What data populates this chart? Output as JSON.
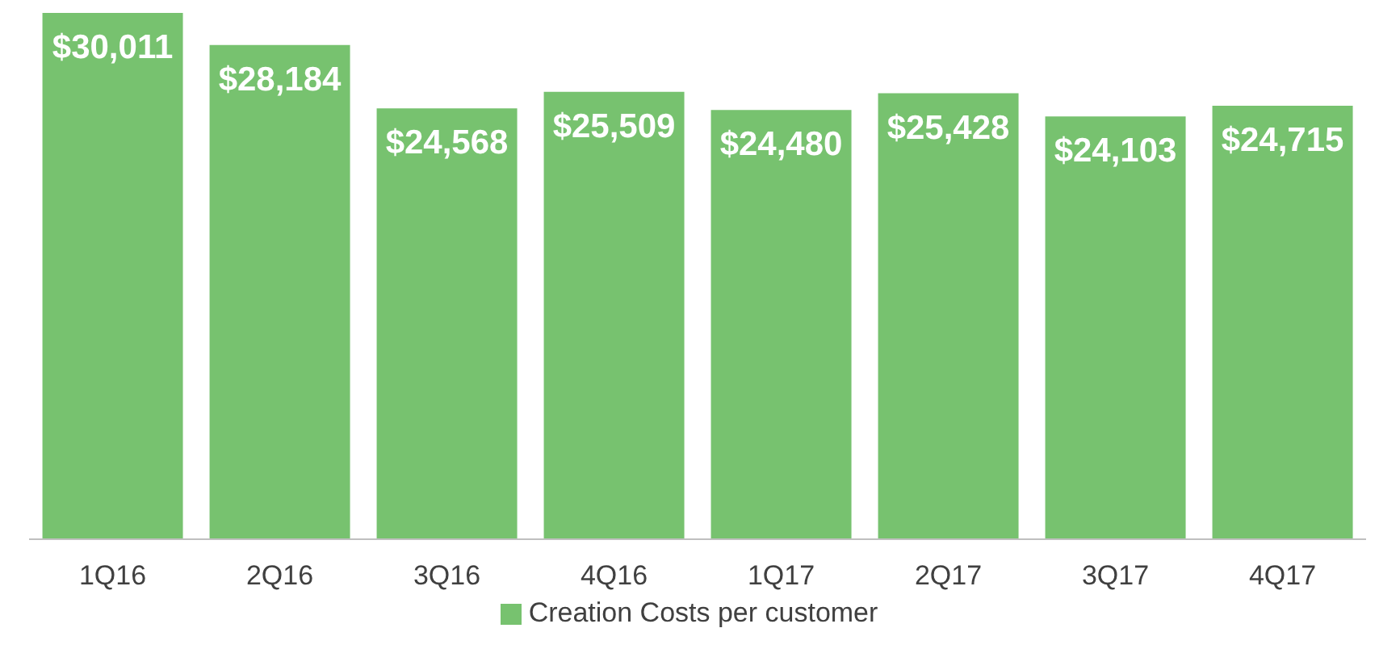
{
  "chart_data": {
    "type": "bar",
    "categories": [
      "1Q16",
      "2Q16",
      "3Q16",
      "4Q16",
      "1Q17",
      "2Q17",
      "3Q17",
      "4Q17"
    ],
    "series": [
      {
        "name": "Creation Costs per customer",
        "color": "#77c26f",
        "values": [
          30011,
          28184,
          24568,
          25509,
          24480,
          25428,
          24103,
          24715
        ],
        "value_labels": [
          "$30,011",
          "$28,184",
          "$24,568",
          "$25,509",
          "$24,480",
          "$25,428",
          "$24,103",
          "$24,715"
        ]
      }
    ],
    "tick_labels": "x",
    "legend": "bottom"
  }
}
